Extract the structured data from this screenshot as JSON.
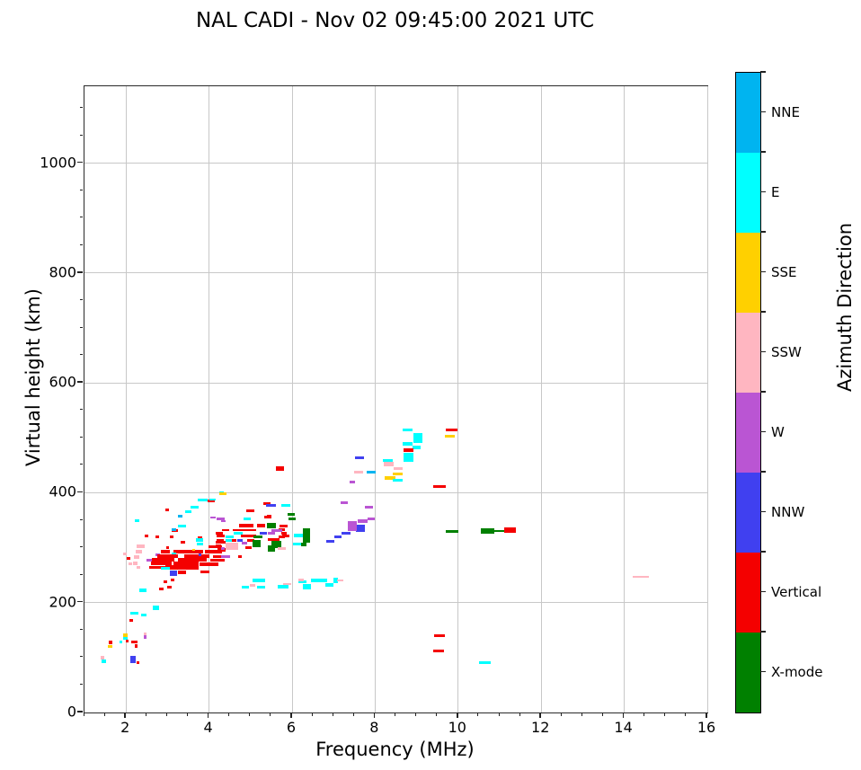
{
  "title": "NAL CADI - Nov 02 09:45:00 2021 UTC",
  "chart_data": {
    "type": "scatter",
    "title": "NAL CADI - Nov 02 09:45:00 2021 UTC",
    "xlabel": "Frequency (MHz)",
    "ylabel": "Virtual height (km)",
    "xlim": [
      1,
      16
    ],
    "ylim": [
      0,
      1140
    ],
    "x_ticks": [
      2,
      4,
      6,
      8,
      10,
      12,
      14,
      16
    ],
    "y_ticks": [
      0,
      200,
      400,
      600,
      800,
      1000
    ],
    "x_minor_step": 0.5,
    "y_minor_step": 50,
    "grid": true,
    "legend_position": "right-colorbar",
    "colorbar": {
      "label": "Azimuth Direction",
      "categories_top_to_bottom": [
        {
          "name": "NNE",
          "color": "#00b4f0"
        },
        {
          "name": "E",
          "color": "#00ffff"
        },
        {
          "name": "SSE",
          "color": "#ffd000"
        },
        {
          "name": "SSW",
          "color": "#ffb6c1"
        },
        {
          "name": "W",
          "color": "#ba55d3"
        },
        {
          "name": "NNW",
          "color": "#4040f0"
        },
        {
          "name": "Vertical",
          "color": "#f40000"
        },
        {
          "name": "X-mode",
          "color": "#008000"
        }
      ]
    },
    "color_keys": {
      "nne": "#00b4f0",
      "e": "#00ffff",
      "sse": "#ffd000",
      "ssw": "#ffb6c1",
      "w": "#ba55d3",
      "nnw": "#4040f0",
      "v": "#f40000",
      "x": "#008000"
    },
    "point_format": [
      "freq_MHz",
      "height_km",
      "azimuth_key",
      "width_MHz",
      "thickness_km"
    ],
    "points": [
      [
        1.44,
        100,
        "ssw",
        0.08,
        6
      ],
      [
        1.47,
        93,
        "e",
        0.1,
        7
      ],
      [
        1.62,
        127,
        "v",
        0.09,
        7
      ],
      [
        1.62,
        120,
        "sse",
        0.1,
        6
      ],
      [
        1.88,
        128,
        "e",
        0.08,
        5
      ],
      [
        1.98,
        141,
        "sse",
        0.1,
        6
      ],
      [
        1.99,
        135,
        "e",
        0.1,
        6
      ],
      [
        2.03,
        130,
        "v",
        0.07,
        5
      ],
      [
        2.2,
        129,
        "v",
        0.17,
        5
      ],
      [
        2.25,
        121,
        "v",
        0.07,
        5
      ],
      [
        2.46,
        143,
        "ssw",
        0.08,
        6
      ],
      [
        2.46,
        137,
        "w",
        0.08,
        6
      ],
      [
        2.17,
        97,
        "nnw",
        0.12,
        13
      ],
      [
        2.29,
        91,
        "v",
        0.08,
        6
      ],
      [
        2.13,
        167,
        "v",
        0.08,
        5
      ],
      [
        2.2,
        181,
        "e",
        0.18,
        5
      ],
      [
        2.43,
        178,
        "e",
        0.12,
        5
      ],
      [
        2.72,
        191,
        "e",
        0.17,
        8
      ],
      [
        2.27,
        349,
        "e",
        0.1,
        5
      ],
      [
        2.4,
        222,
        "e",
        0.18,
        6
      ],
      [
        2.85,
        225,
        "v",
        0.1,
        5
      ],
      [
        3.05,
        228,
        "v",
        0.1,
        5
      ],
      [
        2.95,
        238,
        "v",
        0.08,
        5
      ],
      [
        3.12,
        241,
        "v",
        0.08,
        5
      ],
      [
        2.35,
        302,
        "ssw",
        0.2,
        7
      ],
      [
        2.3,
        293,
        "ssw",
        0.15,
        6
      ],
      [
        2.25,
        283,
        "ssw",
        0.12,
        6
      ],
      [
        2.22,
        272,
        "ssw",
        0.12,
        6
      ],
      [
        2.3,
        264,
        "ssw",
        0.1,
        5
      ],
      [
        1.97,
        288,
        "ssw",
        0.1,
        5
      ],
      [
        2.06,
        280,
        "v",
        0.07,
        5
      ],
      [
        2.1,
        270,
        "ssw",
        0.08,
        5
      ],
      [
        2.55,
        278,
        "w",
        0.13,
        5
      ],
      [
        2.76,
        287,
        "w",
        0.1,
        5
      ],
      [
        2.5,
        322,
        "v",
        0.08,
        5
      ],
      [
        2.75,
        320,
        "v",
        0.08,
        5
      ],
      [
        3.1,
        320,
        "v",
        0.1,
        5
      ],
      [
        3.78,
        318,
        "v",
        0.1,
        5
      ],
      [
        3.37,
        310,
        "v",
        0.1,
        5
      ],
      [
        4.28,
        310,
        "v",
        0.22,
        5
      ],
      [
        4.15,
        302,
        "v",
        0.32,
        6
      ],
      [
        3.0,
        300,
        "v",
        0.08,
        5
      ],
      [
        2.95,
        293,
        "v",
        0.2,
        6
      ],
      [
        3.5,
        293,
        "v",
        0.72,
        6
      ],
      [
        4.1,
        293,
        "v",
        0.42,
        6
      ],
      [
        3.63,
        296,
        "sse",
        0.07,
        4
      ],
      [
        3.15,
        288,
        "e",
        0.1,
        5
      ],
      [
        3.78,
        307,
        "e",
        0.15,
        5
      ],
      [
        3.77,
        314,
        "e",
        0.18,
        5
      ],
      [
        3.0,
        285,
        "v",
        0.5,
        7
      ],
      [
        3.7,
        285,
        "v",
        0.6,
        7
      ],
      [
        4.25,
        284,
        "v",
        0.3,
        6
      ],
      [
        2.9,
        278,
        "v",
        0.55,
        7
      ],
      [
        3.6,
        278,
        "v",
        0.7,
        7
      ],
      [
        4.2,
        277,
        "v",
        0.35,
        6
      ],
      [
        2.85,
        271,
        "v",
        0.5,
        7
      ],
      [
        3.45,
        271,
        "v",
        0.6,
        7
      ],
      [
        4.0,
        270,
        "v",
        0.45,
        7
      ],
      [
        2.75,
        264,
        "v",
        0.4,
        6
      ],
      [
        3.35,
        264,
        "v",
        0.8,
        7
      ],
      [
        3.78,
        287,
        "nnw",
        0.08,
        5
      ],
      [
        2.95,
        262,
        "e",
        0.2,
        5
      ],
      [
        3.14,
        253,
        "nnw",
        0.17,
        10
      ],
      [
        3.35,
        255,
        "v",
        0.2,
        6
      ],
      [
        3.9,
        256,
        "v",
        0.2,
        5
      ],
      [
        3.18,
        331,
        "v",
        0.14,
        5
      ],
      [
        3.0,
        369,
        "v",
        0.09,
        5
      ],
      [
        3.15,
        333,
        "nne",
        0.1,
        5
      ],
      [
        3.3,
        357,
        "nne",
        0.1,
        5
      ],
      [
        3.35,
        340,
        "e",
        0.2,
        5
      ],
      [
        3.5,
        366,
        "e",
        0.14,
        5
      ],
      [
        3.65,
        374,
        "e",
        0.2,
        5
      ],
      [
        3.85,
        387,
        "e",
        0.24,
        5
      ],
      [
        4.05,
        385,
        "v",
        0.18,
        4
      ],
      [
        4.08,
        388,
        "e",
        0.15,
        4
      ],
      [
        4.1,
        355,
        "w",
        0.14,
        4
      ],
      [
        4.28,
        352,
        "w",
        0.2,
        5
      ],
      [
        4.35,
        348,
        "w",
        0.1,
        4
      ],
      [
        4.3,
        401,
        "e",
        0.1,
        4
      ],
      [
        4.33,
        398,
        "sse",
        0.16,
        5
      ],
      [
        4.4,
        332,
        "v",
        0.16,
        4
      ],
      [
        4.85,
        332,
        "v",
        0.55,
        4
      ],
      [
        5.62,
        332,
        "w",
        0.16,
        4
      ],
      [
        5.75,
        333,
        "v",
        0.16,
        4
      ],
      [
        4.25,
        327,
        "v",
        0.16,
        5
      ],
      [
        4.7,
        327,
        "e",
        0.2,
        5
      ],
      [
        5.3,
        326,
        "nnw",
        0.18,
        4
      ],
      [
        5.5,
        326,
        "w",
        0.18,
        4
      ],
      [
        5.8,
        326,
        "v",
        0.12,
        4
      ],
      [
        4.28,
        321,
        "v",
        0.2,
        5
      ],
      [
        4.5,
        320,
        "e",
        0.2,
        5
      ],
      [
        4.95,
        321,
        "v",
        0.35,
        5
      ],
      [
        5.18,
        320,
        "x",
        0.2,
        5
      ],
      [
        5.75,
        320,
        "v",
        0.17,
        5
      ],
      [
        4.27,
        313,
        "v",
        0.17,
        5
      ],
      [
        4.48,
        313,
        "e",
        0.18,
        5
      ],
      [
        4.6,
        313,
        "v",
        0.1,
        5
      ],
      [
        4.75,
        313,
        "nnw",
        0.13,
        5
      ],
      [
        4.85,
        309,
        "w",
        0.14,
        5
      ],
      [
        5.0,
        313,
        "v",
        0.17,
        5
      ],
      [
        5.15,
        308,
        "x",
        0.2,
        13
      ],
      [
        5.62,
        306,
        "x",
        0.22,
        13
      ],
      [
        4.22,
        304,
        "v",
        0.13,
        5
      ],
      [
        4.55,
        302,
        "ssw",
        0.32,
        13
      ],
      [
        4.95,
        300,
        "v",
        0.17,
        6
      ],
      [
        4.3,
        296,
        "v",
        0.2,
        6
      ],
      [
        4.33,
        298,
        "w",
        0.08,
        5
      ],
      [
        4.2,
        283,
        "v",
        0.07,
        5
      ],
      [
        4.4,
        283,
        "w",
        0.2,
        5
      ],
      [
        4.75,
        283,
        "v",
        0.09,
        5
      ],
      [
        4.9,
        340,
        "v",
        0.35,
        6
      ],
      [
        5.25,
        340,
        "v",
        0.2,
        6
      ],
      [
        5.0,
        367,
        "v",
        0.2,
        5
      ],
      [
        5.42,
        355,
        "v",
        0.18,
        5
      ],
      [
        5.4,
        381,
        "v",
        0.18,
        5
      ],
      [
        5.5,
        377,
        "nnw",
        0.24,
        5
      ],
      [
        5.85,
        377,
        "e",
        0.22,
        5
      ],
      [
        4.92,
        353,
        "e",
        0.18,
        5
      ],
      [
        5.45,
        357,
        "v",
        0.12,
        5
      ],
      [
        5.97,
        361,
        "x",
        0.17,
        5
      ],
      [
        6.0,
        353,
        "x",
        0.17,
        5
      ],
      [
        5.5,
        340,
        "x",
        0.2,
        11
      ],
      [
        5.63,
        331,
        "w",
        0.26,
        5
      ],
      [
        5.8,
        339,
        "v",
        0.2,
        5
      ],
      [
        5.85,
        321,
        "v",
        0.18,
        5
      ],
      [
        6.15,
        322,
        "e",
        0.22,
        6
      ],
      [
        6.35,
        322,
        "x",
        0.18,
        26
      ],
      [
        6.12,
        307,
        "e",
        0.18,
        5
      ],
      [
        6.28,
        306,
        "x",
        0.14,
        7
      ],
      [
        5.55,
        315,
        "v",
        0.28,
        5
      ],
      [
        5.5,
        298,
        "x",
        0.17,
        11
      ],
      [
        5.75,
        299,
        "ssw",
        0.2,
        5
      ],
      [
        5.7,
        444,
        "v",
        0.2,
        7
      ],
      [
        4.88,
        228,
        "e",
        0.18,
        6
      ],
      [
        5.05,
        231,
        "ssw",
        0.13,
        5
      ],
      [
        5.25,
        228,
        "e",
        0.18,
        5
      ],
      [
        5.2,
        240,
        "e",
        0.32,
        6
      ],
      [
        5.78,
        229,
        "e",
        0.26,
        7
      ],
      [
        5.88,
        234,
        "ssw",
        0.2,
        4
      ],
      [
        6.25,
        238,
        "e",
        0.2,
        5
      ],
      [
        6.22,
        241,
        "ssw",
        0.12,
        4
      ],
      [
        6.35,
        229,
        "e",
        0.2,
        9
      ],
      [
        6.65,
        240,
        "e",
        0.37,
        7
      ],
      [
        6.9,
        232,
        "e",
        0.2,
        6
      ],
      [
        7.05,
        241,
        "e",
        0.12,
        10
      ],
      [
        7.15,
        240,
        "ssw",
        0.15,
        4
      ],
      [
        6.92,
        312,
        "nnw",
        0.18,
        5
      ],
      [
        7.1,
        320,
        "nnw",
        0.18,
        5
      ],
      [
        7.3,
        327,
        "nnw",
        0.22,
        5
      ],
      [
        7.65,
        335,
        "nnw",
        0.22,
        14
      ],
      [
        7.45,
        340,
        "w",
        0.22,
        18
      ],
      [
        7.7,
        348,
        "w",
        0.22,
        6
      ],
      [
        7.9,
        352,
        "w",
        0.17,
        5
      ],
      [
        7.25,
        382,
        "w",
        0.18,
        5
      ],
      [
        7.85,
        374,
        "w",
        0.2,
        5
      ],
      [
        7.45,
        420,
        "w",
        0.15,
        5
      ],
      [
        7.6,
        438,
        "ssw",
        0.22,
        5
      ],
      [
        7.9,
        437,
        "nne",
        0.22,
        5
      ],
      [
        7.62,
        464,
        "nnw",
        0.22,
        5
      ],
      [
        8.3,
        459,
        "e",
        0.24,
        4
      ],
      [
        8.32,
        452,
        "ssw",
        0.24,
        9
      ],
      [
        8.55,
        444,
        "ssw",
        0.22,
        5
      ],
      [
        8.55,
        435,
        "sse",
        0.24,
        5
      ],
      [
        8.35,
        427,
        "sse",
        0.26,
        6
      ],
      [
        8.55,
        423,
        "e",
        0.24,
        5
      ],
      [
        8.78,
        514,
        "e",
        0.22,
        5
      ],
      [
        9.03,
        500,
        "e",
        0.22,
        18
      ],
      [
        8.78,
        489,
        "e",
        0.22,
        7
      ],
      [
        9.0,
        482,
        "e",
        0.2,
        7
      ],
      [
        8.8,
        478,
        "v",
        0.24,
        6
      ],
      [
        8.8,
        471,
        "e",
        0.24,
        5
      ],
      [
        8.8,
        462,
        "e",
        0.24,
        10
      ],
      [
        9.55,
        412,
        "v",
        0.3,
        5
      ],
      [
        9.85,
        514,
        "v",
        0.28,
        5
      ],
      [
        9.8,
        503,
        "sse",
        0.22,
        5
      ],
      [
        9.55,
        140,
        "v",
        0.26,
        5
      ],
      [
        9.53,
        112,
        "v",
        0.26,
        5
      ],
      [
        9.85,
        330,
        "x",
        0.3,
        5
      ],
      [
        10.7,
        330,
        "x",
        0.32,
        10
      ],
      [
        11.0,
        330,
        "x",
        0.24,
        4
      ],
      [
        11.25,
        332,
        "v",
        0.3,
        10
      ],
      [
        10.65,
        90,
        "e",
        0.28,
        5
      ],
      [
        14.4,
        247,
        "ssw",
        0.4,
        3
      ]
    ]
  }
}
